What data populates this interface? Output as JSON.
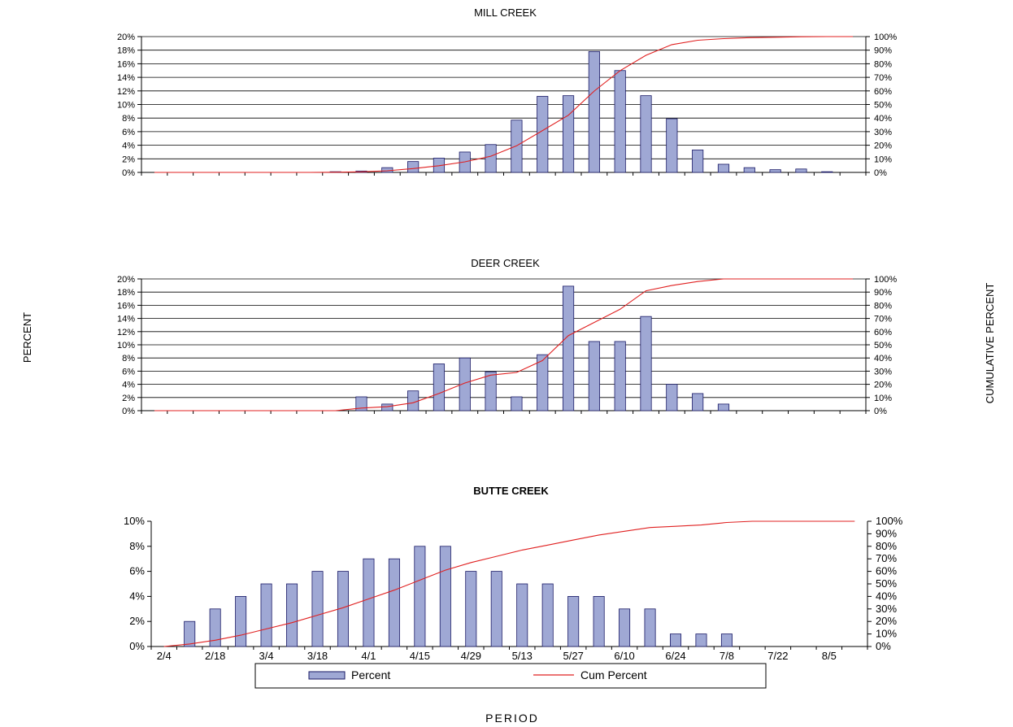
{
  "y_axis_label": "PERCENT",
  "y2_axis_label": "CUMULATIVE PERCENT",
  "x_axis_label": "PERIOD",
  "legend": {
    "bar_label": "Percent",
    "line_label": "Cum Percent",
    "placement": "bottom"
  },
  "colors": {
    "bar_fill": "#9fa8d4",
    "bar_stroke": "#1a1a66",
    "line": "#e02020",
    "grid": "#000000"
  },
  "chart_data": [
    {
      "type": "bar",
      "title": "MILL CREEK",
      "periods": 28,
      "values": [
        0,
        0,
        0,
        0,
        0,
        0,
        0,
        0.1,
        0.2,
        0.7,
        1.6,
        2.1,
        3.0,
        4.1,
        7.7,
        11.2,
        11.3,
        17.8,
        15.0,
        11.3,
        7.9,
        3.3,
        1.2,
        0.7,
        0.4,
        0.5,
        0.1,
        0
      ],
      "cumulative": [
        0,
        0,
        0,
        0,
        0,
        0,
        0,
        0.1,
        0.4,
        1.2,
        2.8,
        4.9,
        7.8,
        11.9,
        19.6,
        30.8,
        42.1,
        59.9,
        74.9,
        86.2,
        94.1,
        97.3,
        98.5,
        99.2,
        99.5,
        99.9,
        100,
        100
      ],
      "ylim": [
        0,
        20
      ],
      "y2lim": [
        0,
        100
      ],
      "yticks": [
        "0%",
        "2%",
        "4%",
        "6%",
        "8%",
        "10%",
        "12%",
        "14%",
        "16%",
        "18%",
        "20%"
      ],
      "y2ticks": [
        "0%",
        "10%",
        "20%",
        "30%",
        "40%",
        "50%",
        "60%",
        "70%",
        "80%",
        "90%",
        "100%"
      ],
      "grid": true
    },
    {
      "type": "bar",
      "title": "DEER CREEK",
      "periods": 28,
      "values": [
        0,
        0,
        0,
        0,
        0,
        0,
        0,
        0,
        2.1,
        1.0,
        3.0,
        7.1,
        8.0,
        5.9,
        2.1,
        8.5,
        18.9,
        10.5,
        10.5,
        14.3,
        4.0,
        2.6,
        1.0,
        0,
        0,
        0,
        0,
        0
      ],
      "cumulative": [
        0,
        0,
        0,
        0,
        0,
        0,
        0,
        0,
        2.0,
        3.0,
        6.0,
        13.0,
        21.0,
        27.0,
        29.0,
        38.0,
        57.0,
        67.0,
        77.0,
        91.0,
        95.0,
        98.0,
        100,
        100,
        100,
        100,
        100,
        100
      ],
      "ylim": [
        0,
        20
      ],
      "y2lim": [
        0,
        100
      ],
      "yticks": [
        "0%",
        "2%",
        "4%",
        "6%",
        "8%",
        "10%",
        "12%",
        "14%",
        "16%",
        "18%",
        "20%"
      ],
      "y2ticks": [
        "0%",
        "10%",
        "20%",
        "30%",
        "40%",
        "50%",
        "60%",
        "70%",
        "80%",
        "90%",
        "100%"
      ],
      "grid": true
    },
    {
      "type": "bar",
      "title": "BUTTE CREEK",
      "periods": 28,
      "x_tick_labels": [
        "2/4",
        "2/18",
        "3/4",
        "3/18",
        "4/1",
        "4/15",
        "4/29",
        "5/13",
        "5/27",
        "6/10",
        "6/24",
        "7/8",
        "7/22",
        "8/5"
      ],
      "values": [
        0,
        2,
        3,
        4,
        5,
        5,
        6,
        6,
        7,
        7,
        8,
        8,
        6,
        6,
        5,
        5,
        4,
        4,
        3,
        3,
        1,
        1,
        1,
        0,
        0,
        0,
        0,
        0
      ],
      "cumulative": [
        0,
        2,
        5,
        9,
        14,
        19,
        25,
        31,
        38,
        45,
        53,
        61,
        67,
        72,
        77,
        81,
        85,
        89,
        92,
        95,
        96,
        97,
        99,
        100,
        100,
        100,
        100,
        100
      ],
      "ylim": [
        0,
        10
      ],
      "y2lim": [
        0,
        100
      ],
      "yticks": [
        "0%",
        "2%",
        "4%",
        "6%",
        "8%",
        "10%"
      ],
      "y2ticks": [
        "0%",
        "10%",
        "20%",
        "30%",
        "40%",
        "50%",
        "60%",
        "70%",
        "80%",
        "90%",
        "100%"
      ],
      "grid": false
    }
  ]
}
